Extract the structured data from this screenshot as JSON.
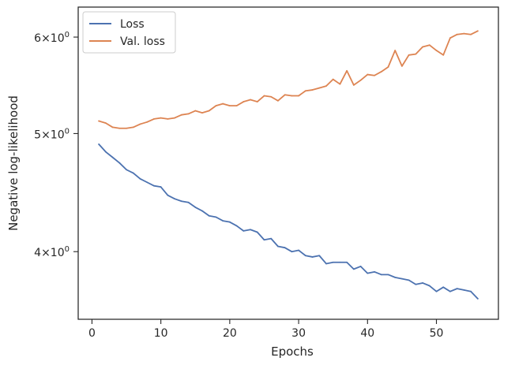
{
  "chart_data": {
    "type": "line",
    "xlabel": "Epochs",
    "ylabel": "Negative log-likelihood",
    "yscale": "log",
    "xlim": [
      -2,
      59
    ],
    "ylim": [
      3.52,
      6.35
    ],
    "x_ticks": [
      0,
      10,
      20,
      30,
      40,
      50
    ],
    "y_ticks": [
      {
        "value": 4,
        "base": "4",
        "times": "×",
        "ten": "10",
        "exp": "0"
      },
      {
        "value": 5,
        "base": "5",
        "times": "×",
        "ten": "10",
        "exp": "0"
      },
      {
        "value": 6,
        "base": "6",
        "times": "×",
        "ten": "10",
        "exp": "0"
      }
    ],
    "grid": false,
    "legend_position": "top-left",
    "x": [
      1,
      2,
      3,
      4,
      5,
      6,
      7,
      8,
      9,
      10,
      11,
      12,
      13,
      14,
      15,
      16,
      17,
      18,
      19,
      20,
      21,
      22,
      23,
      24,
      25,
      26,
      27,
      28,
      29,
      30,
      31,
      32,
      33,
      34,
      35,
      36,
      37,
      38,
      39,
      40,
      41,
      42,
      43,
      44,
      45,
      46,
      47,
      48,
      49,
      50,
      51,
      52,
      53,
      54,
      55,
      56
    ],
    "series": [
      {
        "name": "Loss",
        "color": "#4c72b0",
        "values": [
          4.9,
          4.83,
          4.78,
          4.73,
          4.67,
          4.64,
          4.59,
          4.56,
          4.53,
          4.52,
          4.45,
          4.42,
          4.4,
          4.39,
          4.35,
          4.32,
          4.28,
          4.27,
          4.24,
          4.23,
          4.2,
          4.16,
          4.17,
          4.15,
          4.09,
          4.1,
          4.04,
          4.03,
          4.0,
          4.01,
          3.97,
          3.96,
          3.97,
          3.91,
          3.92,
          3.92,
          3.92,
          3.87,
          3.89,
          3.84,
          3.85,
          3.83,
          3.83,
          3.81,
          3.8,
          3.79,
          3.76,
          3.77,
          3.75,
          3.71,
          3.74,
          3.71,
          3.73,
          3.72,
          3.71,
          3.66
        ]
      },
      {
        "name": "Val. loss",
        "color": "#dd8452",
        "values": [
          5.12,
          5.1,
          5.06,
          5.05,
          5.05,
          5.06,
          5.09,
          5.11,
          5.14,
          5.15,
          5.14,
          5.15,
          5.18,
          5.19,
          5.22,
          5.2,
          5.22,
          5.27,
          5.29,
          5.27,
          5.27,
          5.31,
          5.33,
          5.31,
          5.37,
          5.36,
          5.32,
          5.38,
          5.37,
          5.37,
          5.42,
          5.43,
          5.45,
          5.47,
          5.54,
          5.49,
          5.63,
          5.48,
          5.53,
          5.59,
          5.58,
          5.62,
          5.67,
          5.85,
          5.68,
          5.8,
          5.81,
          5.89,
          5.91,
          5.85,
          5.8,
          5.99,
          6.03,
          6.04,
          6.03,
          6.07
        ]
      }
    ]
  }
}
